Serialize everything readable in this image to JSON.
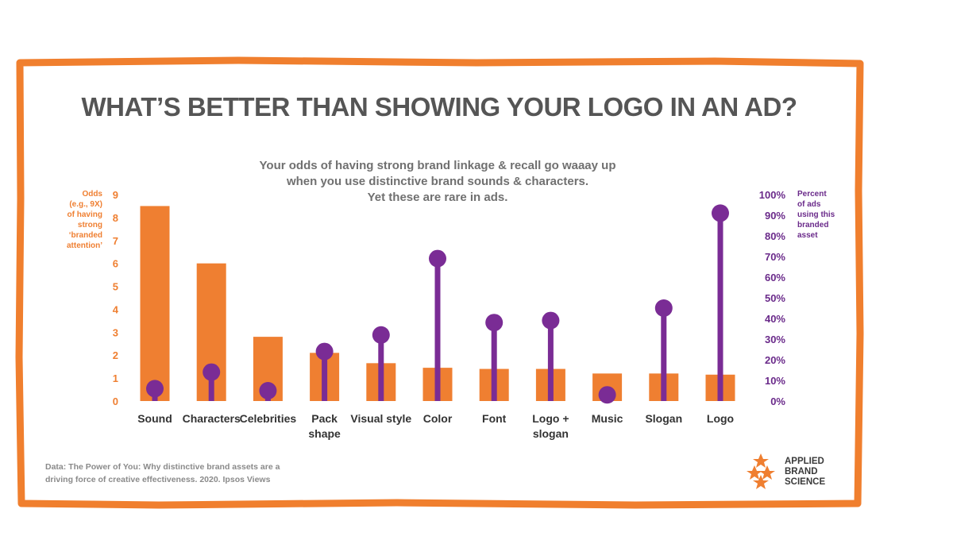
{
  "title": "WHAT’S BETTER THAN SHOWING YOUR LOGO IN AN AD?",
  "subtitle_lines": [
    "Your odds of having strong brand linkage & recall go waaay up",
    "when you use distinctive brand sounds & characters.",
    "Yet these are rare in ads."
  ],
  "left_axis_label_lines": [
    "Odds",
    "(e.g., 9X)",
    "of having",
    "strong",
    "‘branded",
    "attention’"
  ],
  "right_axis_label_lines": [
    "Percent",
    "of ads",
    "using this",
    "branded",
    "asset"
  ],
  "source_lines": [
    "Data: The Power of You: Why distinctive brand assets are a",
    "driving force of creative effectiveness. 2020. Ipsos Views"
  ],
  "logo_lines": [
    "APPLIED",
    "BRAND",
    "SCIENCE"
  ],
  "colors": {
    "border": "#f07f2e",
    "bar": "#ef7f31",
    "lollipop": "#7a2c95",
    "title": "#555555",
    "subtitle": "#707070",
    "left_axis": "#ef7f31",
    "right_axis": "#6a2a8a",
    "source": "#8a8a8a"
  },
  "chart_data": {
    "type": "bar",
    "categories": [
      [
        "Sound"
      ],
      [
        "Characters"
      ],
      [
        "Celebrities"
      ],
      [
        "Pack",
        "shape"
      ],
      [
        "Visual style"
      ],
      [
        "Color"
      ],
      [
        "Font"
      ],
      [
        "Logo +",
        "slogan"
      ],
      [
        "Music"
      ],
      [
        "Slogan"
      ],
      [
        "Logo"
      ]
    ],
    "series": [
      {
        "axis": "left",
        "type": "bar",
        "values": [
          8.5,
          6.0,
          2.8,
          2.1,
          1.65,
          1.45,
          1.4,
          1.4,
          1.2,
          1.2,
          1.15
        ]
      },
      {
        "axis": "right",
        "type": "lollipop",
        "values": [
          6,
          14,
          5,
          24,
          32,
          69,
          38,
          39,
          3,
          45,
          91
        ]
      }
    ],
    "left_axis": {
      "ylim": [
        0,
        9
      ],
      "ticks": [
        "0",
        "1",
        "2",
        "3",
        "4",
        "5",
        "6",
        "7",
        "8",
        "9"
      ]
    },
    "right_axis": {
      "ylim": [
        0,
        100
      ],
      "ticks": [
        "0%",
        "10%",
        "20%",
        "30%",
        "40%",
        "50%",
        "60%",
        "70%",
        "80%",
        "90%",
        "100%"
      ]
    },
    "grid": false,
    "legend": "none"
  }
}
